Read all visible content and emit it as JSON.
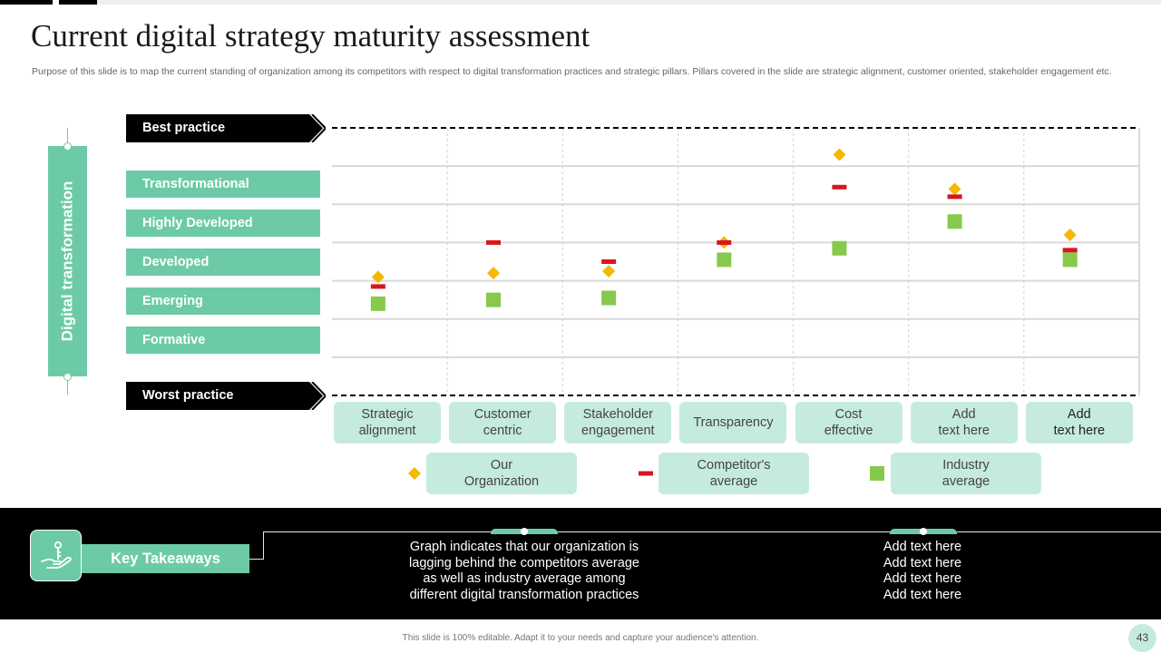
{
  "title": "Current digital strategy maturity assessment",
  "description": "Purpose of this slide is to map the current standing of organization among its competitors with respect to digital transformation practices and strategic pillars. Pillars covered in the slide are strategic alignment, customer oriented, stakeholder engagement etc.",
  "vertical_label": "Digital transformation",
  "best_practice": "Best practice",
  "worst_practice": "Worst practice",
  "levels": [
    "Transformational",
    "Highly Developed",
    "Developed",
    "Emerging",
    "Formative"
  ],
  "colors": {
    "accent": "#6ccba6",
    "accent_light": "#c5ebdc",
    "our_organization": "#f5b800",
    "competitors_average": "#d9161e",
    "industry_average": "#86c94b"
  },
  "chart_data": {
    "type": "scatter",
    "categories": [
      "Strategic\nalignment",
      "Customer\ncentric",
      "Stakeholder\nengagement",
      "Transparency",
      "Cost\neffective",
      "Add\ntext here",
      "Add\ntext here"
    ],
    "y_axis": {
      "min": 0,
      "max": 7,
      "tick_labels": [
        "Worst practice",
        "Formative",
        "Emerging",
        "Developed",
        "Highly Developed",
        "Transformational",
        "Best practice"
      ]
    },
    "series": [
      {
        "name": "Our Organization",
        "marker": "diamond",
        "values": [
          3.1,
          3.2,
          3.25,
          4.0,
          6.3,
          5.4,
          4.2
        ]
      },
      {
        "name": "Competitor's average",
        "marker": "dash",
        "values": [
          2.85,
          4.0,
          3.5,
          4.0,
          5.45,
          5.2,
          3.8
        ]
      },
      {
        "name": "Industry average",
        "marker": "square",
        "values": [
          2.4,
          2.5,
          2.55,
          3.55,
          3.85,
          4.55,
          3.55
        ]
      }
    ],
    "grid": true,
    "legend_position": "bottom"
  },
  "key_takeaways": {
    "label": "Key Takeaways",
    "text1": "Graph indicates that our organization is\nlagging behind the competitors average\nas well as industry average among\ndifferent digital transformation practices",
    "text2": "Add text here\nAdd text here\nAdd text here\nAdd text here"
  },
  "footer_note": "This slide is 100% editable. Adapt it to your needs and capture your audience's attention.",
  "page_number": "43"
}
